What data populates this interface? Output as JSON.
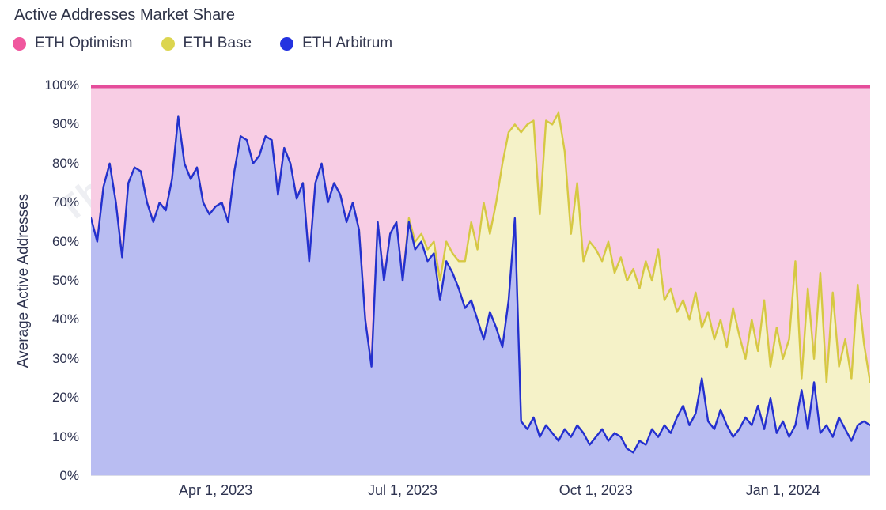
{
  "title": "Active Addresses Market Share",
  "watermark": "TheBlock",
  "legend": [
    {
      "id": "eth-optimism",
      "label": "ETH Optimism",
      "color": "#f0579e"
    },
    {
      "id": "eth-base",
      "label": "ETH Base",
      "color": "#dcd54f"
    },
    {
      "id": "eth-arbitrum",
      "label": "ETH Arbitrum",
      "color": "#2433e0"
    }
  ],
  "chart_data": {
    "type": "area",
    "stacked": true,
    "normalized": "percent-stacked-to-100",
    "title": "Active Addresses Market Share",
    "xlabel": "",
    "ylabel": "Average Active Addresses",
    "ylim": [
      0,
      100
    ],
    "grid": false,
    "legend_position": "top-left",
    "y_ticks": [
      {
        "v": 0,
        "label": "0%"
      },
      {
        "v": 10,
        "label": "10%"
      },
      {
        "v": 20,
        "label": "20%"
      },
      {
        "v": 30,
        "label": "30%"
      },
      {
        "v": 40,
        "label": "40%"
      },
      {
        "v": 50,
        "label": "50%"
      },
      {
        "v": 60,
        "label": "60%"
      },
      {
        "v": 70,
        "label": "70%"
      },
      {
        "v": 80,
        "label": "80%"
      },
      {
        "v": 90,
        "label": "90%"
      },
      {
        "v": 100,
        "label": "100%"
      }
    ],
    "x_ticks": [
      {
        "i": 20,
        "label": "Apr 1, 2023"
      },
      {
        "i": 50,
        "label": "Jul 1, 2023"
      },
      {
        "i": 81,
        "label": "Oct 1, 2023"
      },
      {
        "i": 111,
        "label": "Jan 1, 2024"
      }
    ],
    "series": [
      {
        "key": "arbitrum",
        "name": "ETH Arbitrum",
        "line": "#2430cf",
        "fill": "#b9bdf2",
        "values": [
          66,
          60,
          74,
          80,
          70,
          56,
          75,
          79,
          78,
          70,
          65,
          70,
          68,
          76,
          92,
          80,
          76,
          79,
          70,
          67,
          69,
          70,
          65,
          78,
          87,
          86,
          80,
          82,
          87,
          86,
          72,
          84,
          80,
          71,
          75,
          55,
          75,
          80,
          70,
          75,
          72,
          65,
          70,
          63,
          40,
          28,
          65,
          50,
          62,
          65,
          50,
          65,
          58,
          60,
          55,
          57,
          45,
          55,
          52,
          48,
          43,
          45,
          40,
          35,
          42,
          38,
          33,
          45,
          66,
          14,
          12,
          15,
          10,
          13,
          11,
          9,
          12,
          10,
          13,
          11,
          8,
          10,
          12,
          9,
          11,
          10,
          7,
          6,
          9,
          8,
          12,
          10,
          13,
          11,
          15,
          18,
          13,
          16,
          25,
          14,
          12,
          17,
          13,
          10,
          12,
          15,
          13,
          18,
          12,
          20,
          11,
          14,
          10,
          13,
          22,
          12,
          24,
          11,
          13,
          10,
          15,
          12,
          9,
          13,
          14,
          13
        ]
      },
      {
        "key": "base",
        "name": "ETH Base",
        "line": "#d6c843",
        "fill": "#f5f2c8",
        "values": [
          0,
          0,
          0,
          0,
          0,
          0,
          0,
          0,
          0,
          0,
          0,
          0,
          0,
          0,
          0,
          0,
          0,
          0,
          0,
          0,
          0,
          0,
          0,
          0,
          0,
          0,
          0,
          0,
          0,
          0,
          0,
          0,
          0,
          0,
          0,
          0,
          0,
          0,
          0,
          0,
          0,
          0,
          0,
          0,
          0,
          0,
          0,
          0,
          0,
          0,
          0,
          1,
          2,
          2,
          3,
          3,
          5,
          5,
          5,
          7,
          12,
          20,
          18,
          35,
          20,
          32,
          47,
          43,
          24,
          74,
          78,
          76,
          57,
          78,
          79,
          84,
          71,
          52,
          62,
          44,
          52,
          48,
          43,
          51,
          41,
          46,
          43,
          47,
          39,
          47,
          38,
          48,
          32,
          37,
          27,
          27,
          27,
          31,
          13,
          28,
          23,
          23,
          20,
          33,
          24,
          15,
          27,
          14,
          33,
          8,
          27,
          16,
          25,
          42,
          3,
          36,
          6,
          41,
          11,
          37,
          13,
          23,
          16,
          36,
          20,
          11
        ]
      },
      {
        "key": "optimism",
        "name": "ETH Optimism",
        "line": "#e54d9b",
        "fill": "#f8cde4",
        "derived": "remainder to 100%"
      }
    ]
  }
}
